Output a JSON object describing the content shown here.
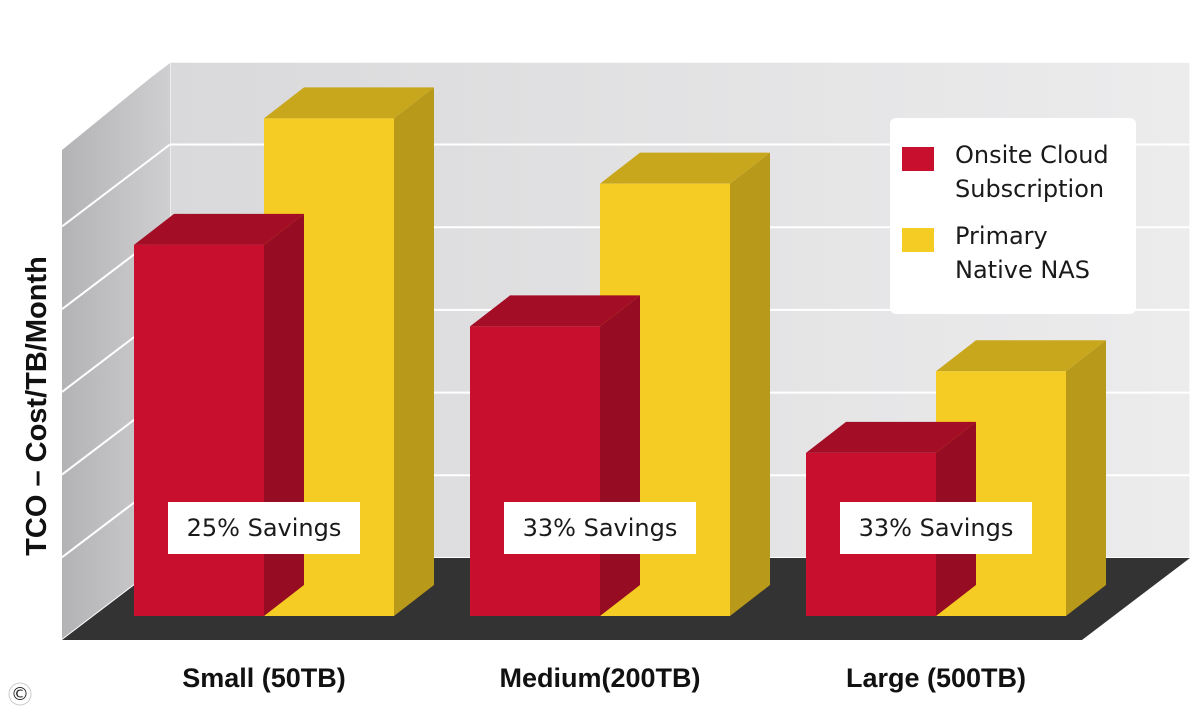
{
  "chart_data": {
    "type": "bar",
    "title": "",
    "ylabel": "TCO – Cost/TB/Month",
    "xlabel": "",
    "categories": [
      "Small (50TB)",
      "Medium(200TB)",
      "Large (500TB)"
    ],
    "series": [
      {
        "name": "Onsite Cloud Subscription",
        "legend_lines": [
          "Onsite Cloud",
          "Subscription"
        ],
        "color": "#c8102e",
        "values": [
          4.55,
          3.55,
          2.0
        ]
      },
      {
        "name": "Primary Native NAS",
        "legend_lines": [
          "Primary",
          "Native NAS"
        ],
        "color": "#f5cc23",
        "values": [
          6.1,
          5.3,
          3.0
        ]
      }
    ],
    "annotations": [
      "25% Savings",
      "33% Savings",
      "33% Savings"
    ],
    "ylim": [
      0,
      7
    ],
    "grid": true,
    "y_tick_labels": false,
    "legend_position": "top-right",
    "three_d": true
  },
  "footer": {
    "copyright_symbol": "©"
  }
}
